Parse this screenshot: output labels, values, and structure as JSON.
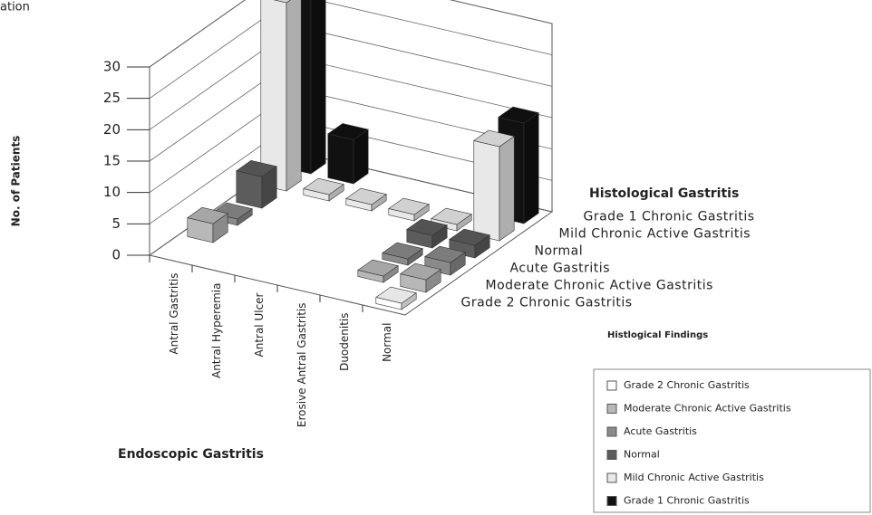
{
  "caption": "ation",
  "chart_data": {
    "type": "bar3d",
    "y_label": "No. of Patients",
    "x_label": "Endoscopic Gastritis",
    "z_label": "Histological Gastritis",
    "legend_title": "Histlogical Findings",
    "categories": [
      "Antral Gastritis",
      "Antral Hyperemia",
      "Antral Ulcer",
      "Erosive Antral Gastritis",
      "Duodenitis",
      "Normal"
    ],
    "series": [
      {
        "name": "Grade 2 Chronic Gastritis",
        "color": "#ffffff",
        "values": [
          0,
          0,
          0,
          0,
          0,
          1
        ]
      },
      {
        "name": "Moderate Chronic Active Gastritis",
        "color": "#b8b8b8",
        "values": [
          3,
          0,
          0,
          0,
          1,
          2
        ]
      },
      {
        "name": "Acute Gastritis",
        "color": "#8a8a8a",
        "values": [
          1,
          0,
          0,
          0,
          1,
          2
        ]
      },
      {
        "name": "Normal",
        "color": "#5c5c5c",
        "values": [
          5,
          0,
          0,
          0,
          2,
          2
        ]
      },
      {
        "name": "Mild Chronic Active Gastritis",
        "color": "#e8e8e8",
        "values": [
          30,
          1,
          1,
          1,
          1,
          15
        ]
      },
      {
        "name": "Grade 1 Chronic Gastritis",
        "color": "#111111",
        "values": [
          30,
          7,
          0,
          0,
          0,
          16
        ]
      }
    ],
    "ylim": [
      0,
      30
    ],
    "yticks": [
      0,
      5,
      10,
      15,
      20,
      25,
      30
    ],
    "grid": true
  }
}
